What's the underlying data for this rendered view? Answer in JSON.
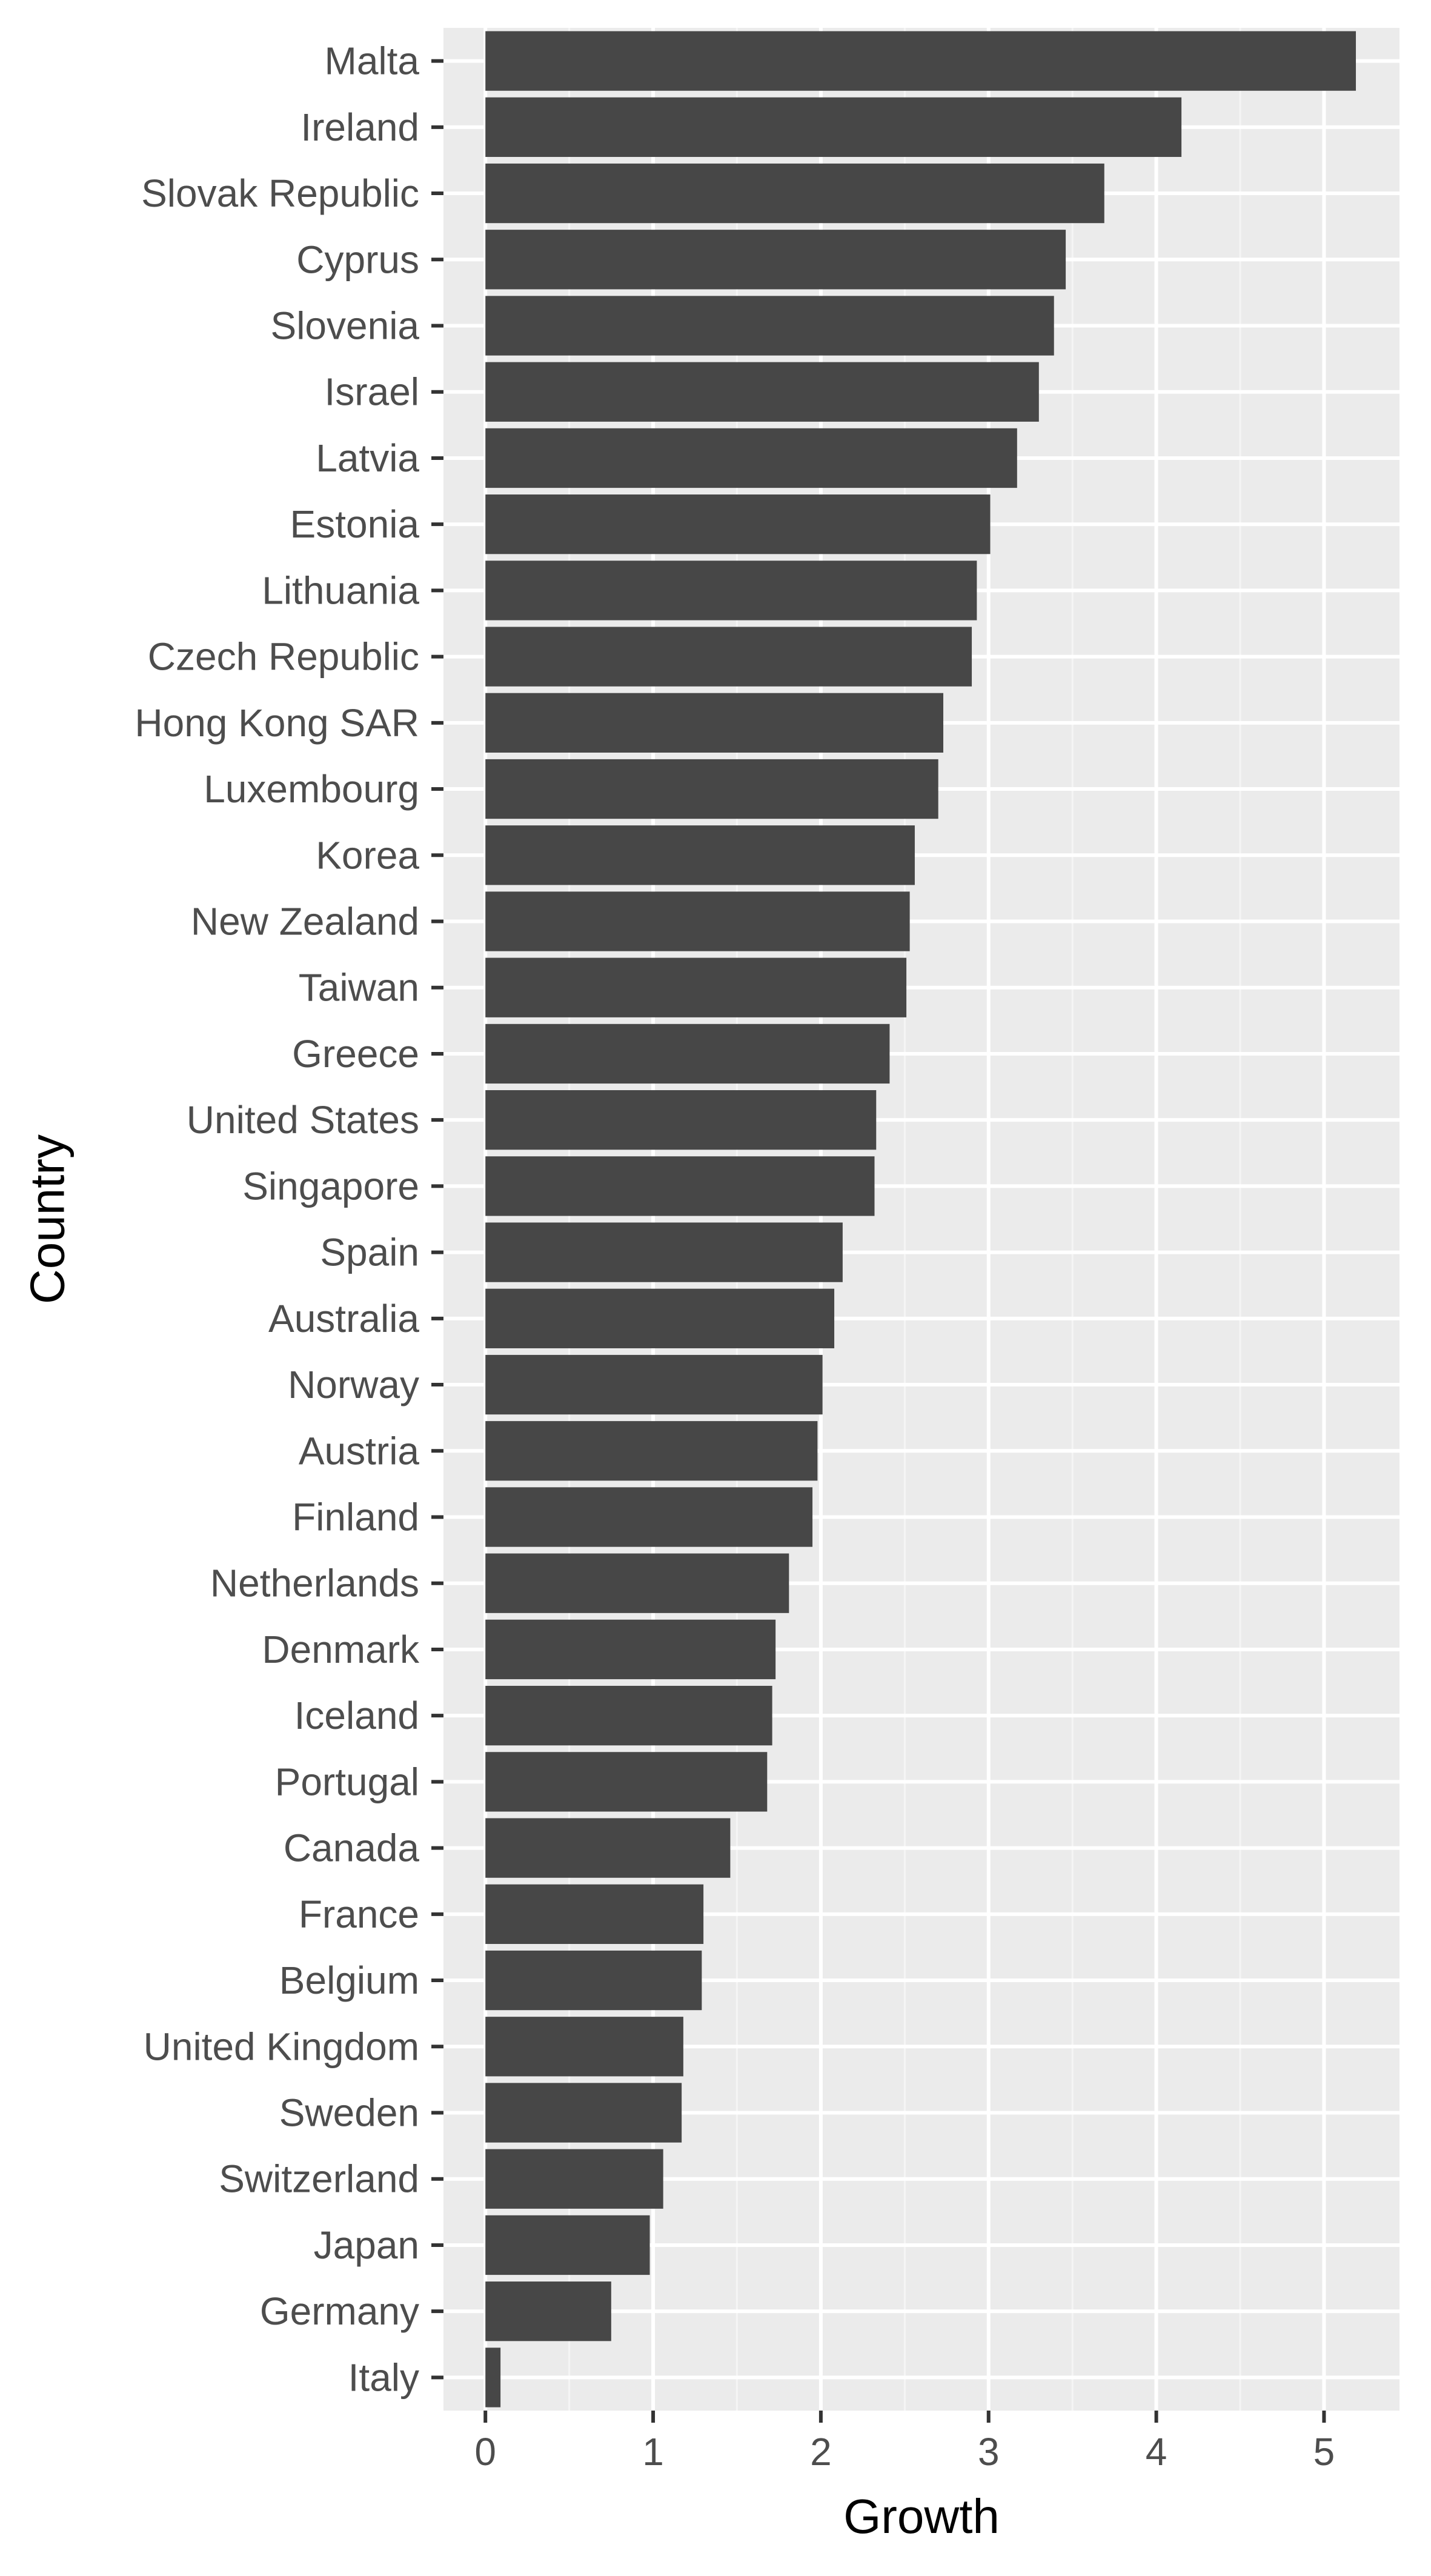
{
  "chart_data": {
    "type": "bar",
    "orientation": "horizontal",
    "xlabel": "Growth",
    "ylabel": "Country",
    "xlim": [
      -0.25,
      5.45
    ],
    "xticks": [
      0,
      1,
      2,
      3,
      4,
      5
    ],
    "grid": true,
    "categories": [
      "Malta",
      "Ireland",
      "Slovak Republic",
      "Cyprus",
      "Slovenia",
      "Israel",
      "Latvia",
      "Estonia",
      "Lithuania",
      "Czech Republic",
      "Hong Kong SAR",
      "Luxembourg",
      "Korea",
      "New Zealand",
      "Taiwan",
      "Greece",
      "United States",
      "Singapore",
      "Spain",
      "Australia",
      "Norway",
      "Austria",
      "Finland",
      "Netherlands",
      "Denmark",
      "Iceland",
      "Portugal",
      "Canada",
      "France",
      "Belgium",
      "United Kingdom",
      "Sweden",
      "Switzerland",
      "Japan",
      "Germany",
      "Italy"
    ],
    "values": [
      5.19,
      4.15,
      3.69,
      3.46,
      3.39,
      3.3,
      3.17,
      3.01,
      2.93,
      2.9,
      2.73,
      2.7,
      2.56,
      2.53,
      2.51,
      2.41,
      2.33,
      2.32,
      2.13,
      2.08,
      2.01,
      1.98,
      1.95,
      1.81,
      1.73,
      1.71,
      1.68,
      1.46,
      1.3,
      1.29,
      1.18,
      1.17,
      1.06,
      0.98,
      0.75,
      0.09
    ],
    "colors": {
      "bar": "#474747",
      "panel": "#ebebeb",
      "grid_major": "#ffffff",
      "grid_minor": "#f5f5f5",
      "tick": "#333333"
    }
  }
}
